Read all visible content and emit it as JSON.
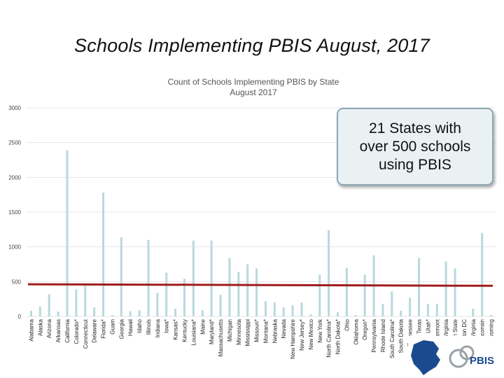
{
  "slide_title": "Schools Implementing PBIS  August, 2017",
  "callout_text": "21 States with\nover 500 schools\nusing PBIS",
  "logo_text": "PBIS",
  "colors": {
    "bars": "#b9d9dc",
    "trend_line": "#a01c1c",
    "grid": "#e6e6e6",
    "logo_blue": "#1b4b8e"
  },
  "chart_data": {
    "type": "bar",
    "title": "Count of Schools Implementing PBIS by State",
    "subtitle": "August 2017",
    "ylim": [
      0,
      3000
    ],
    "yticks": [
      0,
      500,
      1000,
      1500,
      2000,
      2500,
      3000
    ],
    "grid": true,
    "categories": [
      "Alabama",
      "Alaska",
      "Arizona",
      "Arkansas",
      "California",
      "Colorado*",
      "Connecticut",
      "Delaware",
      "Florida*",
      "Guam",
      "Georgia",
      "Hawaii",
      "Idaho",
      "Illinois",
      "Indiana",
      "Iowa*",
      "Kansas*",
      "Kentucky",
      "Louisiana*",
      "Maine",
      "Maryland*",
      "Massachusetts",
      "Michigan",
      "Minnesota",
      "Mississippi",
      "Missouri*",
      "Montana*",
      "Nebraska",
      "Nevada",
      "New Hampshire",
      "New Jersey*",
      "New Mexico",
      "New York",
      "North Carolina*",
      "North Dakota*",
      "Ohio",
      "Oklahoma",
      "Oregon*",
      "Pennsylvania",
      "Rhode Island",
      "South Carolina*",
      "South Dakota",
      "Tennessee",
      "Texas",
      "Utah*",
      "Vermont",
      "Virginia",
      "Washington State",
      "Washington DC",
      "West Virginia",
      "Wisconsin",
      "Wyoming"
    ],
    "values": [
      80,
      140,
      320,
      70,
      2390,
      390,
      460,
      130,
      1780,
      20,
      1140,
      75,
      90,
      1100,
      340,
      630,
      110,
      540,
      1090,
      90,
      1090,
      310,
      840,
      640,
      750,
      690,
      220,
      200,
      130,
      160,
      200,
      30,
      600,
      1240,
      60,
      700,
      20,
      600,
      880,
      180,
      360,
      80,
      270,
      840,
      180,
      180,
      790,
      690,
      0,
      110,
      1200,
      20
    ],
    "trend_line": [
      462,
      440
    ]
  }
}
